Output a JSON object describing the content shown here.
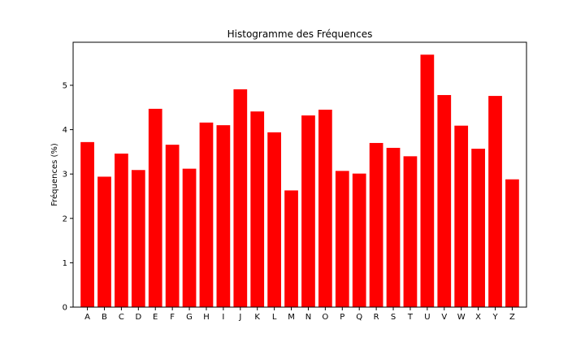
{
  "chart_data": {
    "type": "bar",
    "title": "Histogramme des Fréquences",
    "xlabel": "",
    "ylabel": "Fréquences (%)",
    "categories": [
      "A",
      "B",
      "C",
      "D",
      "E",
      "F",
      "G",
      "H",
      "I",
      "J",
      "K",
      "L",
      "M",
      "N",
      "O",
      "P",
      "Q",
      "R",
      "S",
      "T",
      "U",
      "V",
      "W",
      "X",
      "Y",
      "Z"
    ],
    "values": [
      3.72,
      2.94,
      3.46,
      3.09,
      4.47,
      3.66,
      3.12,
      4.16,
      4.1,
      4.91,
      4.41,
      3.94,
      2.63,
      4.32,
      4.45,
      3.07,
      3.01,
      3.7,
      3.59,
      3.4,
      5.69,
      4.78,
      4.09,
      3.57,
      4.76,
      2.88
    ],
    "yticks": [
      0,
      1,
      2,
      3,
      4,
      5
    ],
    "ylim": [
      0,
      5.97
    ],
    "bar_color": "#ff0000",
    "grid": false,
    "legend": "none"
  }
}
